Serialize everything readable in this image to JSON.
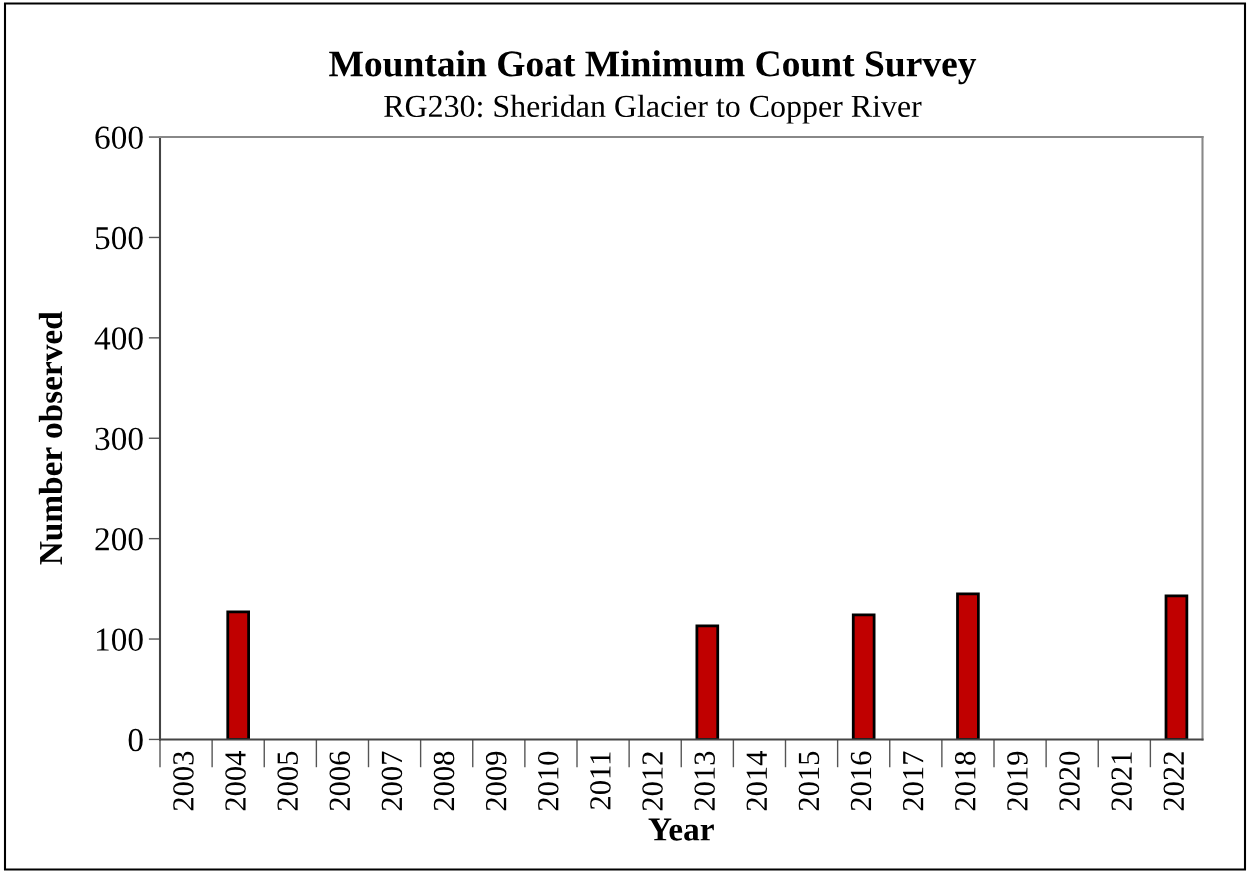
{
  "chart_data": {
    "type": "bar",
    "title": "Mountain Goat Minimum Count Survey",
    "subtitle": "RG230: Sheridan Glacier to Copper River",
    "xlabel": "Year",
    "ylabel": "Number observed",
    "categories": [
      "2003",
      "2004",
      "2005",
      "2006",
      "2007",
      "2008",
      "2009",
      "2010",
      "2011",
      "2012",
      "2013",
      "2014",
      "2015",
      "2016",
      "2017",
      "2018",
      "2019",
      "2020",
      "2021",
      "2022"
    ],
    "values": [
      null,
      127,
      null,
      null,
      null,
      null,
      null,
      null,
      null,
      null,
      113,
      null,
      null,
      124,
      null,
      145,
      null,
      null,
      null,
      143
    ],
    "color": "#c00000",
    "ylim": [
      0,
      600
    ],
    "yticks": [
      0,
      100,
      200,
      300,
      400,
      500,
      600
    ],
    "grid": false,
    "legend": false
  }
}
